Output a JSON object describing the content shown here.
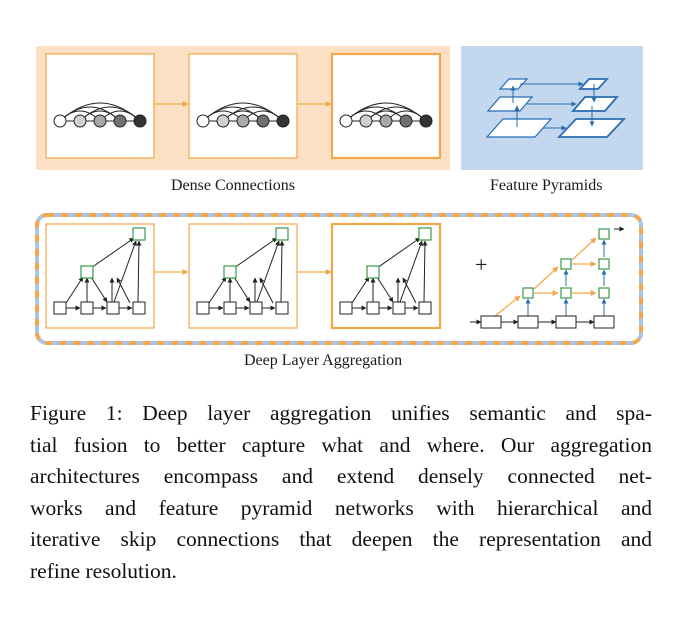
{
  "labels": {
    "dense": "Dense Connections",
    "pyramids": "Feature Pyramids",
    "dla": "Deep Layer Aggregation",
    "plus": "+"
  },
  "caption": {
    "lines": [
      "Figure 1: Deep layer aggregation unifies semantic and spa-",
      "tial fusion to better capture what and where. Our aggregation",
      "architectures encompass and extend densely connected net-",
      "works and feature pyramid networks with hierarchical and",
      "iterative skip connections that deepen the representation and",
      "refine resolution."
    ]
  },
  "colors": {
    "orange": "#f4a64a",
    "orange_fill": "#fbe0c4",
    "blue_fill": "#c3d7ef",
    "blue": "#2a6cb0",
    "green": "#3a9a4a",
    "dashed_blue": "#a9c6e8"
  }
}
